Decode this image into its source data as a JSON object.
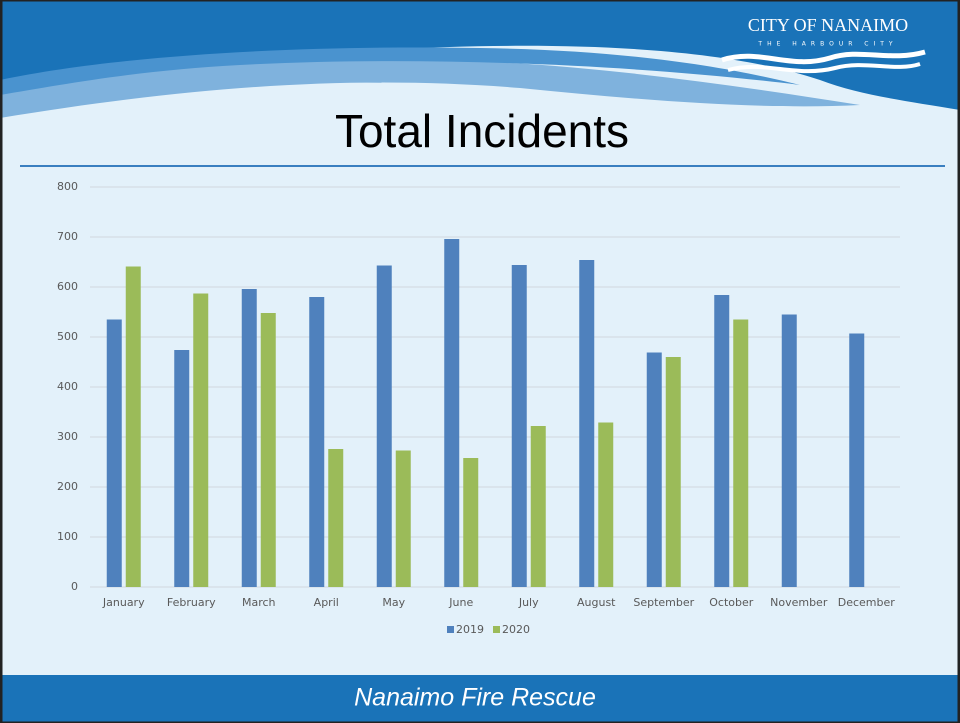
{
  "logo": {
    "name": "CITY OF NANAIMO",
    "tagline": "THE HARBOUR CITY"
  },
  "footer": "Nanaimo Fire Rescue",
  "chart_data": {
    "type": "bar",
    "title": "Total Incidents",
    "categories": [
      "January",
      "February",
      "March",
      "April",
      "May",
      "June",
      "July",
      "August",
      "September",
      "October",
      "November",
      "December"
    ],
    "series": [
      {
        "name": "2019",
        "color": "#4f81bd",
        "values": [
          535,
          474,
          596,
          580,
          643,
          696,
          644,
          654,
          469,
          584,
          545,
          507
        ]
      },
      {
        "name": "2020",
        "color": "#9bbb59",
        "values": [
          641,
          587,
          548,
          276,
          273,
          258,
          322,
          329,
          460,
          535,
          null,
          null
        ]
      }
    ],
    "ylim": [
      0,
      800
    ],
    "yticks": [
      0,
      100,
      200,
      300,
      400,
      500,
      600,
      700,
      800
    ],
    "grid": true,
    "legend": "bottom"
  }
}
